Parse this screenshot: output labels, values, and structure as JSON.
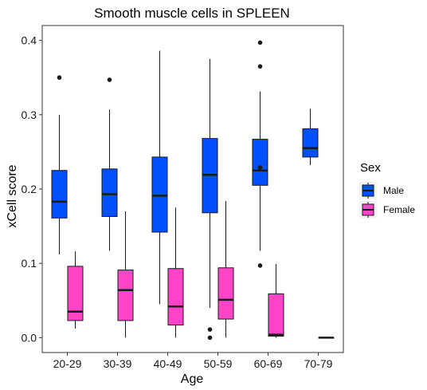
{
  "chart_data": {
    "type": "boxplot",
    "title": "Smooth muscle cells in SPLEEN",
    "xlabel": "Age",
    "ylabel": "xCell score",
    "categories": [
      "20-29",
      "30-39",
      "40-49",
      "50-59",
      "60-69",
      "70-79"
    ],
    "ylim": [
      -0.02,
      0.42
    ],
    "yticks": [
      0.0,
      0.1,
      0.2,
      0.3,
      0.4
    ],
    "ytick_labels": [
      "0.0",
      "0.1",
      "0.2",
      "0.3",
      "0.4"
    ],
    "grid": false,
    "legend": {
      "title": "Sex",
      "position": "right"
    },
    "series": [
      {
        "name": "Male",
        "color": "#0050ff",
        "boxes": [
          {
            "category": "20-29",
            "whisker_low": 0.112,
            "q1": 0.161,
            "median": 0.183,
            "q3": 0.225,
            "whisker_high": 0.3,
            "outliers": [
              0.35
            ]
          },
          {
            "category": "30-39",
            "whisker_low": 0.117,
            "q1": 0.163,
            "median": 0.193,
            "q3": 0.227,
            "whisker_high": 0.307,
            "outliers": [
              0.347
            ]
          },
          {
            "category": "40-49",
            "whisker_low": 0.045,
            "q1": 0.142,
            "median": 0.191,
            "q3": 0.243,
            "whisker_high": 0.386,
            "outliers": []
          },
          {
            "category": "50-59",
            "whisker_low": 0.04,
            "q1": 0.168,
            "median": 0.219,
            "q3": 0.268,
            "whisker_high": 0.375,
            "outliers": [
              0.0,
              0.011
            ]
          },
          {
            "category": "60-69",
            "whisker_low": 0.117,
            "q1": 0.205,
            "median": 0.225,
            "q3": 0.267,
            "whisker_high": 0.331,
            "outliers": [
              0.229,
              0.097,
              0.365,
              0.397
            ]
          },
          {
            "category": "70-79",
            "whisker_low": 0.232,
            "q1": 0.243,
            "median": 0.255,
            "q3": 0.281,
            "whisker_high": 0.308,
            "outliers": []
          }
        ]
      },
      {
        "name": "Female",
        "color": "#ff44c8",
        "boxes": [
          {
            "category": "20-29",
            "whisker_low": 0.012,
            "q1": 0.023,
            "median": 0.035,
            "q3": 0.096,
            "whisker_high": 0.116,
            "outliers": []
          },
          {
            "category": "30-39",
            "whisker_low": 0.0,
            "q1": 0.023,
            "median": 0.064,
            "q3": 0.091,
            "whisker_high": 0.17,
            "outliers": []
          },
          {
            "category": "40-49",
            "whisker_low": 0.0,
            "q1": 0.017,
            "median": 0.042,
            "q3": 0.093,
            "whisker_high": 0.175,
            "outliers": []
          },
          {
            "category": "50-59",
            "whisker_low": 0.0,
            "q1": 0.025,
            "median": 0.051,
            "q3": 0.094,
            "whisker_high": 0.184,
            "outliers": []
          },
          {
            "category": "60-69",
            "whisker_low": 0.0,
            "q1": 0.002,
            "median": 0.004,
            "q3": 0.059,
            "whisker_high": 0.099,
            "outliers": []
          },
          {
            "category": "70-79",
            "whisker_low": 0.0,
            "q1": 0.0,
            "median": 0.0,
            "q3": 0.0,
            "whisker_high": 0.0,
            "outliers": []
          }
        ]
      }
    ]
  }
}
